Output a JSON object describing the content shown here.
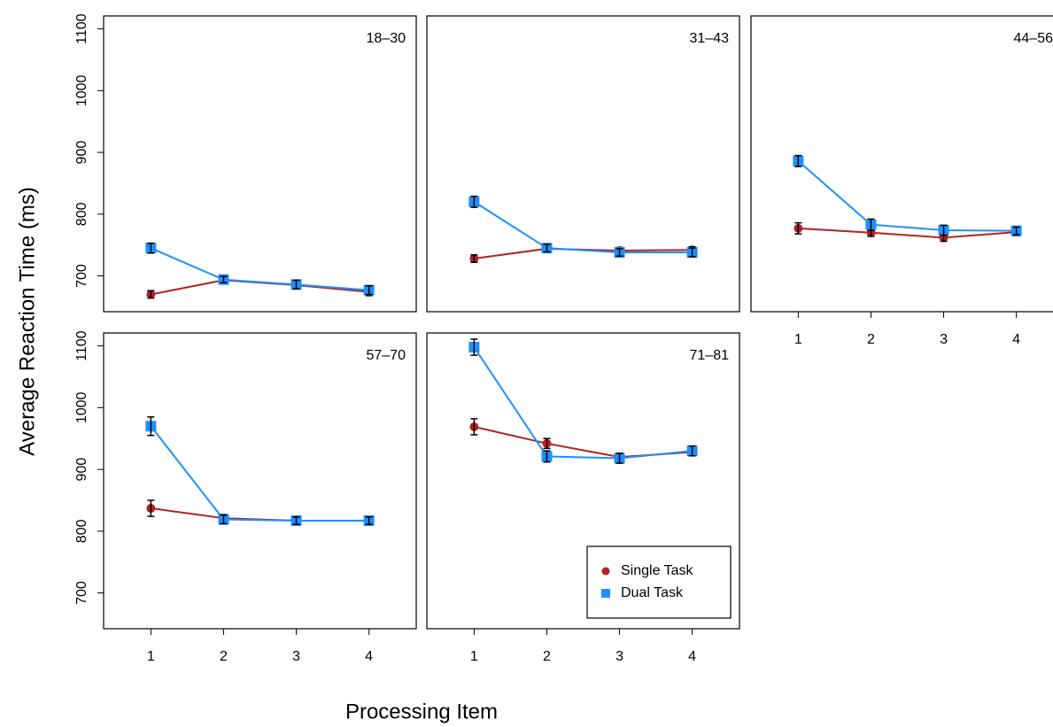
{
  "ylabel": "Average Reaction Time (ms)",
  "xlabel": "Processing Item",
  "chart_data": [
    {
      "type": "line",
      "title": "18–30",
      "ylim": [
        642,
        1121
      ],
      "yticks": [
        700,
        800,
        900,
        1000,
        1100
      ],
      "series": [
        {
          "color": "#b22222",
          "marker": "circle",
          "values": [
            670,
            693,
            685,
            674
          ],
          "errors": [
            6,
            5,
            6,
            6
          ]
        },
        {
          "color": "#1e90ff",
          "marker": "square",
          "values": [
            745,
            694,
            686,
            677
          ],
          "errors": [
            8,
            5,
            7,
            7
          ]
        }
      ]
    },
    {
      "type": "line",
      "title": "31–43",
      "ylim": [
        642,
        1121
      ],
      "series": [
        {
          "color": "#b22222",
          "marker": "circle",
          "values": [
            728,
            744,
            741,
            742
          ],
          "errors": [
            6,
            6,
            5,
            5
          ]
        },
        {
          "color": "#1e90ff",
          "marker": "square",
          "values": [
            820,
            745,
            738,
            738
          ],
          "errors": [
            9,
            6,
            6,
            7
          ]
        }
      ]
    },
    {
      "type": "line",
      "title": "44–56",
      "ylim": [
        642,
        1121
      ],
      "categories": [
        1,
        2,
        3,
        4
      ],
      "series": [
        {
          "color": "#b22222",
          "marker": "circle",
          "values": [
            777,
            770,
            762,
            771
          ],
          "errors": [
            9,
            6,
            6,
            6
          ]
        },
        {
          "color": "#1e90ff",
          "marker": "square",
          "values": [
            886,
            783,
            774,
            773
          ],
          "errors": [
            9,
            9,
            8,
            6
          ]
        }
      ]
    },
    {
      "type": "line",
      "title": "57–70",
      "ylim": [
        642,
        1121
      ],
      "yticks": [
        700,
        800,
        900,
        1000,
        1100
      ],
      "categories": [
        1,
        2,
        3,
        4
      ],
      "series": [
        {
          "color": "#b22222",
          "marker": "circle",
          "values": [
            837,
            821,
            817,
            817
          ],
          "errors": [
            13,
            6,
            5,
            5
          ]
        },
        {
          "color": "#1e90ff",
          "marker": "square",
          "values": [
            970,
            819,
            817,
            817
          ],
          "errors": [
            15,
            7,
            6,
            6
          ]
        }
      ]
    },
    {
      "type": "line",
      "title": "71–81",
      "ylim": [
        642,
        1121
      ],
      "categories": [
        1,
        2,
        3,
        4
      ],
      "legend": "bottom-right",
      "series": [
        {
          "name": "Single Task",
          "color": "#b22222",
          "marker": "circle",
          "values": [
            969,
            942,
            920,
            928
          ],
          "errors": [
            13,
            8,
            6,
            6
          ]
        },
        {
          "name": "Dual Task",
          "color": "#1e90ff",
          "marker": "square",
          "values": [
            1098,
            921,
            918,
            930
          ],
          "errors": [
            13,
            9,
            8,
            8
          ]
        }
      ]
    }
  ]
}
